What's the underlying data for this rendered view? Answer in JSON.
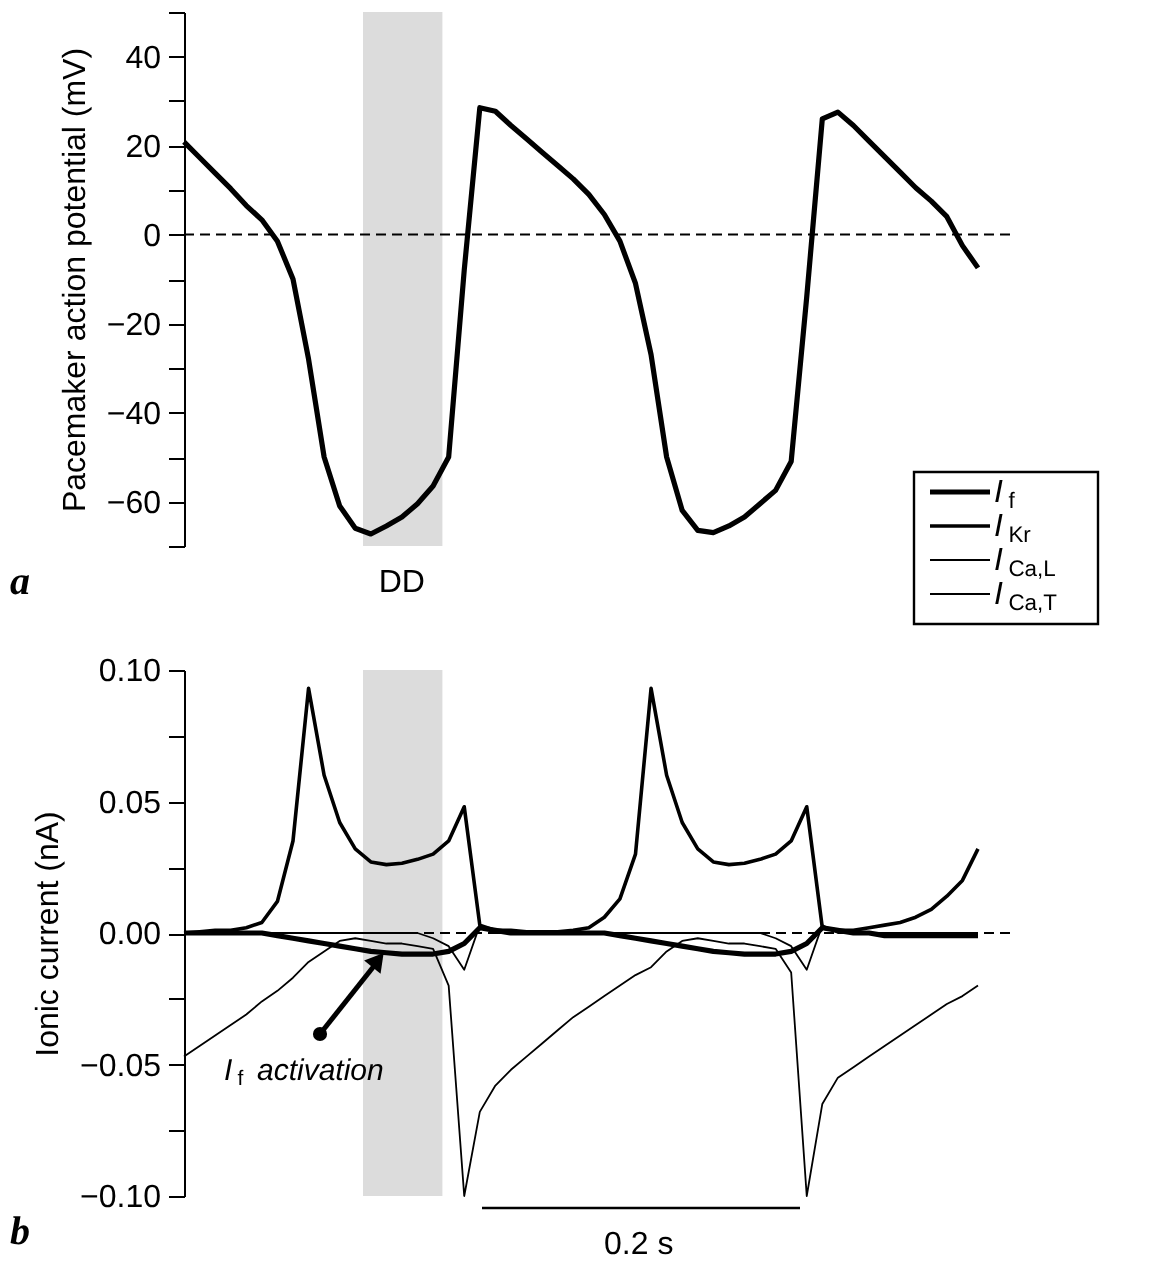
{
  "chart_data": [
    {
      "type": "line",
      "ylabel": "Pacemaker action potential (mV)",
      "categories": [
        null,
        null,
        null,
        null,
        null,
        null,
        null,
        null,
        null,
        null,
        null,
        null,
        null,
        null,
        null,
        null,
        null,
        null,
        null,
        null,
        null,
        null,
        null,
        null,
        null,
        null,
        null,
        null,
        null,
        null,
        null,
        null,
        null,
        null,
        null,
        null,
        null,
        null,
        null,
        null,
        null,
        null,
        null,
        null,
        null,
        null,
        null,
        null,
        null,
        null,
        null,
        null
      ],
      "series": [
        {
          "color": "#000000",
          "values": [
            20.8,
            17.3,
            13.8,
            10.3,
            6.5,
            3.3,
            -1.5,
            -10,
            -28,
            -50,
            -61,
            -66,
            -67.3,
            -65.5,
            -63.5,
            -60.5,
            -56.5,
            -50,
            -8,
            28.5,
            27.7,
            24.5,
            21.5,
            18.5,
            15.5,
            12.5,
            9,
            4.5,
            -1.5,
            -11,
            -27,
            -50,
            -62,
            -66.5,
            -67,
            -65.5,
            -63.5,
            -60.5,
            -57.5,
            -51,
            -14,
            26,
            27.5,
            24.5,
            21,
            17.5,
            14,
            10.5,
            7.5,
            4,
            -2.5,
            -7.5
          ]
        }
      ],
      "ylim": [
        -70,
        50
      ],
      "yticks": [
        {
          "value": -70,
          "label": null
        },
        {
          "value": -60,
          "label": "−60"
        },
        {
          "value": -50,
          "label": null
        },
        {
          "value": -40,
          "label": "−40"
        },
        {
          "value": -30,
          "label": null
        },
        {
          "value": -20,
          "label": "−20"
        },
        {
          "value": -10,
          "label": null
        },
        0,
        {
          "value": 10,
          "label": null
        },
        20,
        {
          "value": 30,
          "label": null
        },
        40,
        {
          "value": 50,
          "label": null
        }
      ],
      "tick_labels": "y",
      "grid": false,
      "line_style": "solid",
      "marker": "none",
      "ref_lines": [
        {
          "axis": "y",
          "value": 0,
          "line_style": "dashed",
          "color": "#000000"
        }
      ],
      "annotations": [
        "a",
        "DD"
      ]
    },
    {
      "type": "line",
      "ylabel": "Ionic current (nA)",
      "categories": [
        null,
        null,
        null,
        null,
        null,
        null,
        null,
        null,
        null,
        null,
        null,
        null,
        null,
        null,
        null,
        null,
        null,
        null,
        null,
        null,
        null,
        null,
        null,
        null,
        null,
        null,
        null,
        null,
        null,
        null,
        null,
        null,
        null,
        null,
        null,
        null,
        null,
        null,
        null,
        null,
        null,
        null,
        null,
        null,
        null,
        null,
        null,
        null,
        null,
        null,
        null,
        null
      ],
      "series": [
        {
          "name": "I$_{f}$",
          "color": "#000000",
          "values": [
            0,
            0,
            0,
            0,
            0,
            0,
            -0.001,
            -0.002,
            -0.003,
            -0.004,
            -0.005,
            -0.006,
            -0.007,
            -0.0075,
            -0.008,
            -0.008,
            -0.008,
            -0.007,
            -0.004,
            0.002,
            0.001,
            0,
            0,
            0,
            0,
            0,
            0,
            0,
            -0.001,
            -0.002,
            -0.003,
            -0.004,
            -0.005,
            -0.006,
            -0.007,
            -0.0075,
            -0.008,
            -0.008,
            -0.008,
            -0.007,
            -0.004,
            0.002,
            0.001,
            0,
            0,
            -0.001,
            -0.001,
            -0.001,
            -0.001,
            -0.001,
            -0.001,
            -0.001
          ]
        },
        {
          "name": "I$_{Kr}$",
          "color": "#000000",
          "values": [
            0,
            0.0005,
            0.001,
            0.001,
            0.002,
            0.004,
            0.012,
            0.035,
            0.093,
            0.06,
            0.042,
            0.032,
            0.027,
            0.026,
            0.0265,
            0.028,
            0.03,
            0.035,
            0.048,
            0.003,
            0.001,
            0.001,
            0.0005,
            0.0005,
            0.0005,
            0.001,
            0.002,
            0.006,
            0.013,
            0.03,
            0.093,
            0.06,
            0.042,
            0.032,
            0.027,
            0.026,
            0.0265,
            0.028,
            0.03,
            0.035,
            0.048,
            0.002,
            0.001,
            0.001,
            0.002,
            0.003,
            0.004,
            0.006,
            0.009,
            0.014,
            0.02,
            0.032
          ]
        },
        {
          "name": "I$_{Ca,L}$",
          "color": "#000000",
          "values": [
            -0.047,
            -0.043,
            -0.039,
            -0.035,
            -0.031,
            -0.026,
            -0.022,
            -0.017,
            -0.011,
            -0.007,
            -0.003,
            -0.002,
            -0.003,
            -0.004,
            -0.004,
            -0.005,
            -0.006,
            -0.02,
            -0.1,
            -0.068,
            -0.058,
            -0.052,
            -0.047,
            -0.042,
            -0.037,
            -0.032,
            -0.028,
            -0.024,
            -0.02,
            -0.016,
            -0.013,
            -0.007,
            -0.003,
            -0.002,
            -0.003,
            -0.004,
            -0.004,
            -0.005,
            -0.006,
            -0.015,
            -0.1,
            -0.065,
            -0.055,
            -0.051,
            -0.047,
            -0.043,
            -0.039,
            -0.035,
            -0.031,
            -0.027,
            -0.024,
            -0.02
          ]
        },
        {
          "name": "I$_{Ca,T}$",
          "color": "#000000",
          "values": [
            0,
            0,
            0,
            0,
            0,
            0,
            0,
            0,
            0,
            0,
            0,
            0,
            0,
            0,
            0,
            0,
            -0.002,
            -0.005,
            -0.014,
            0.003,
            0,
            0,
            0,
            0,
            0,
            0,
            0,
            0,
            0,
            0,
            0,
            0,
            0,
            0,
            0,
            0,
            0,
            0,
            -0.002,
            -0.005,
            -0.014,
            0.003,
            0,
            0,
            0,
            0,
            0,
            0,
            0,
            0,
            0,
            0
          ]
        }
      ],
      "ylim": [
        -0.1,
        0.1
      ],
      "yticks": [
        {
          "value": -0.1,
          "label": "−0.10"
        },
        {
          "value": -0.075,
          "label": null
        },
        {
          "value": -0.05,
          "label": "−0.05"
        },
        {
          "value": -0.025,
          "label": null
        },
        {
          "value": 0,
          "label": "0.00"
        },
        {
          "value": 0.025,
          "label": null
        },
        {
          "value": 0.05,
          "label": "0.05"
        },
        {
          "value": 0.075,
          "label": null
        },
        {
          "value": 0.1,
          "label": "0.10"
        }
      ],
      "tick_labels": "y",
      "grid": false,
      "legend": "top right",
      "line_style": "solid",
      "marker": "none",
      "ref_lines": [
        {
          "axis": "y",
          "value": 0,
          "line_style": "dashed",
          "color": "#000000"
        }
      ],
      "annotations": [
        "b",
        "I$_{f}$ activation",
        "0.2 s"
      ]
    }
  ]
}
